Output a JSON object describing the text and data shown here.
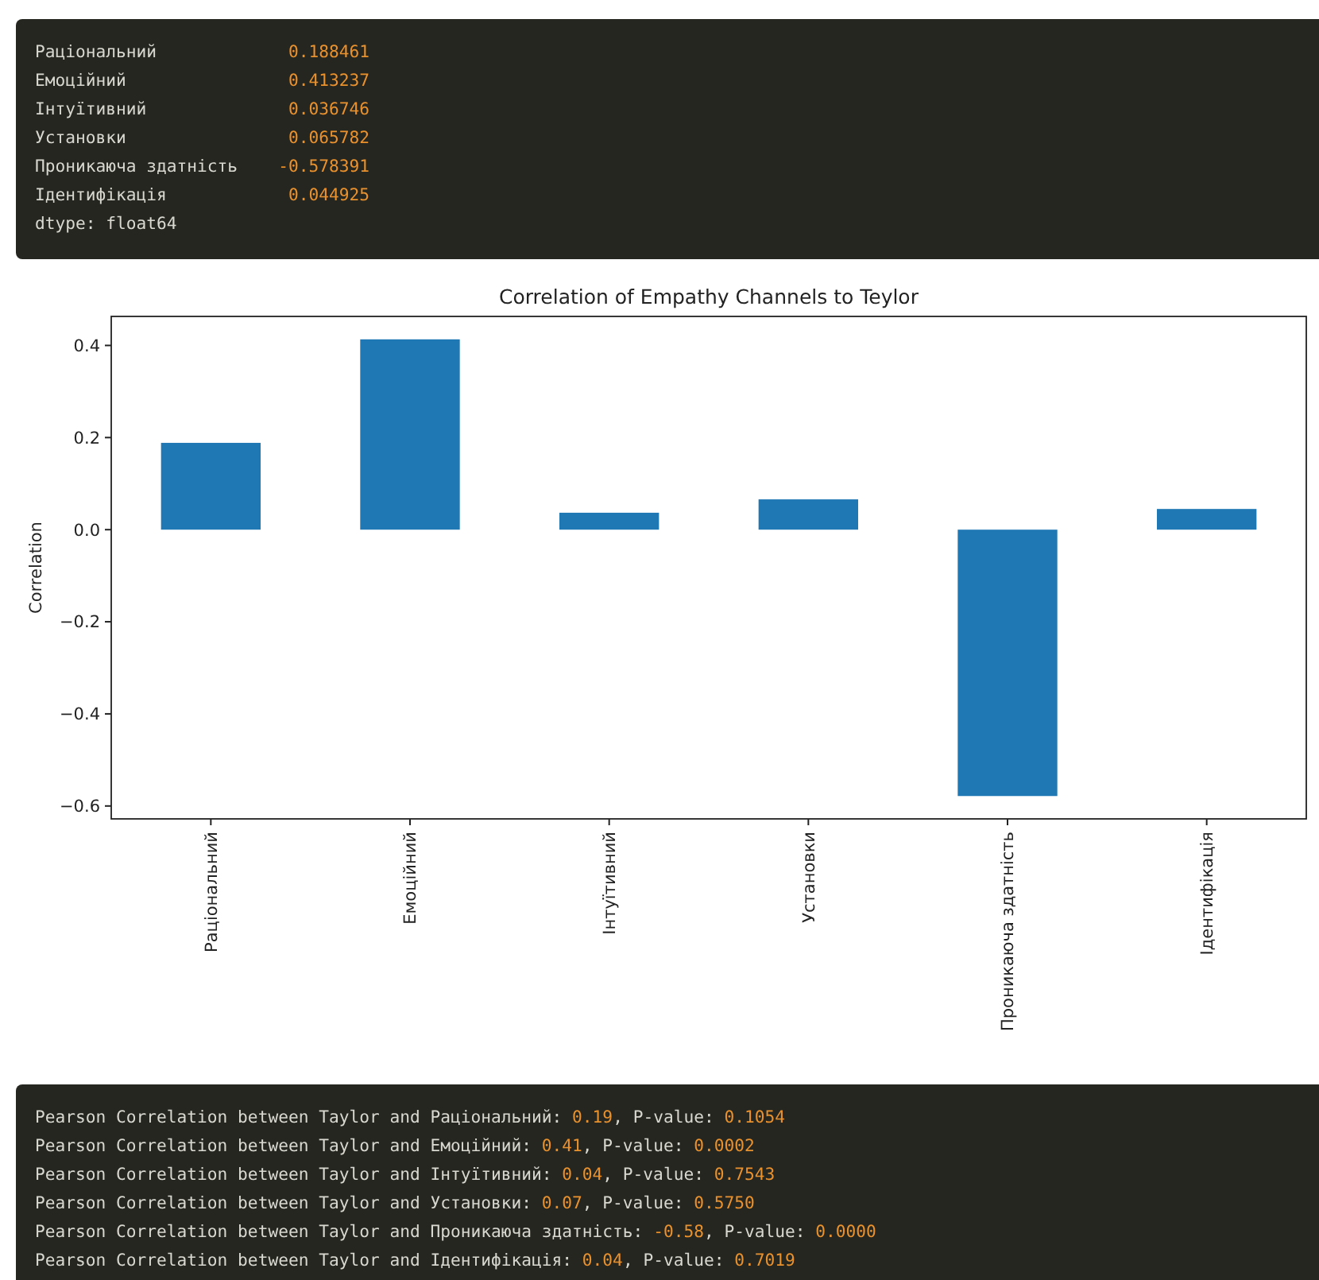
{
  "chart_data": {
    "type": "bar",
    "title": "Correlation of Empathy Channels to Teylor",
    "ylabel": "Correlation",
    "categories": [
      "Раціональний",
      "Емоційний",
      "Інтуїтивний",
      "Установки",
      "Проникаюча здатність",
      "Ідентифікація"
    ],
    "values": [
      0.188461,
      0.413237,
      0.036746,
      0.065782,
      -0.578391,
      0.044925
    ],
    "color": "#1f77b4",
    "ylim": [
      -0.628,
      0.463
    ],
    "yticks": [
      {
        "value": -0.6,
        "label": "−0.6"
      },
      {
        "value": -0.4,
        "label": "−0.4"
      },
      {
        "value": -0.2,
        "label": "−0.2"
      },
      {
        "value": 0,
        "label": "0.0"
      },
      {
        "value": 0.2,
        "label": "0.2"
      },
      {
        "value": 0.4,
        "label": "0.4"
      }
    ],
    "annotations": [
      "Раціональний             0.188461\nЕмоційний                0.413237\nІнтуїтивний              0.036746\nУстановки                0.065782\nПроникаюча здатність    -0.578391\nІдентифікація            0.044925\ndtype: float64",
      "Pearson Correlation between Taylor and Раціональний: 0.19, P-value: 0.1054\nPearson Correlation between Taylor and Емоційний: 0.41, P-value: 0.0002\nPearson Correlation between Taylor and Інтуїтивний: 0.04, P-value: 0.7543\nPearson Correlation between Taylor and Установки: 0.07, P-value: 0.5750\nPearson Correlation between Taylor and Проникаюча здатність: -0.58, P-value: 0.0000\nPearson Correlation between Taylor and Ідентифікація: 0.04, P-value: 0.7019"
    ]
  }
}
